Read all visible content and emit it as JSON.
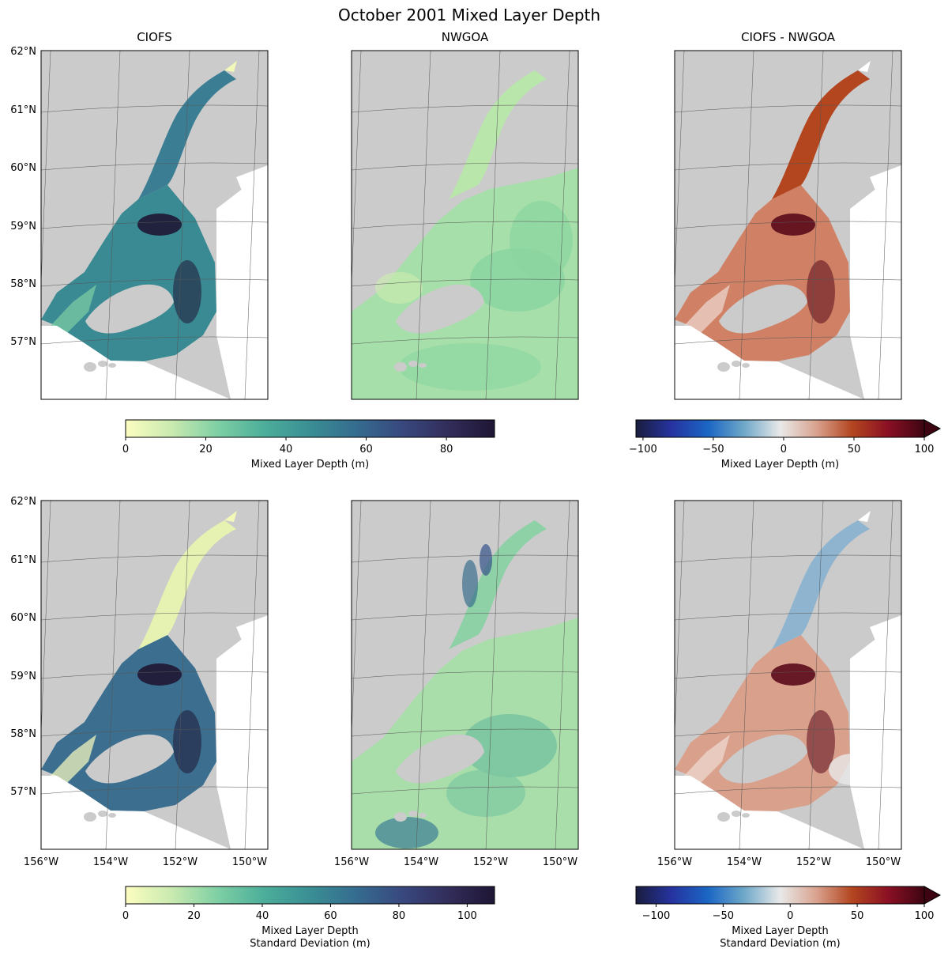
{
  "chart_data": {
    "type": "heatmap",
    "title": "October 2001 Mixed Layer Depth",
    "lat_ticks": [
      "62°N",
      "61°N",
      "60°N",
      "59°N",
      "58°N",
      "57°N"
    ],
    "lon_ticks": [
      "156°W",
      "154°W",
      "152°W",
      "150°W"
    ],
    "colors": {
      "land": "#cbcbcb",
      "frame": "#000000",
      "grid": "#555555",
      "deep_cmap": [
        "#fcfdbf",
        "#c9eab0",
        "#7ecfa4",
        "#4cae9a",
        "#3a8e94",
        "#356c8f",
        "#38487f",
        "#322d5a",
        "#1f1634"
      ],
      "diff_cmap": [
        "#1a1d3e",
        "#2633a0",
        "#1b66c4",
        "#6ea8c9",
        "#e9e9e9",
        "#d9a38f",
        "#b3451f",
        "#8a1024",
        "#3d0512"
      ]
    },
    "panels": [
      {
        "row": 0,
        "col": 0,
        "title": "CIOFS",
        "kind": "ciofs",
        "metric": "mean"
      },
      {
        "row": 0,
        "col": 1,
        "title": "NWGOA",
        "kind": "nwgoa",
        "metric": "mean"
      },
      {
        "row": 0,
        "col": 2,
        "title": "CIOFS - NWGOA",
        "kind": "diff",
        "metric": "mean"
      },
      {
        "row": 1,
        "col": 0,
        "title": "",
        "kind": "ciofs",
        "metric": "std"
      },
      {
        "row": 1,
        "col": 1,
        "title": "",
        "kind": "nwgoa",
        "metric": "std"
      },
      {
        "row": 1,
        "col": 2,
        "title": "",
        "kind": "diff",
        "metric": "std"
      }
    ],
    "colorbars": [
      {
        "row": 0,
        "kind": "deep",
        "range": [
          0,
          92
        ],
        "ticks": [
          0,
          20,
          40,
          60,
          80
        ],
        "label_lines": [
          "Mixed Layer Depth (m)"
        ]
      },
      {
        "row": 0,
        "kind": "diff",
        "range": [
          -105,
          100
        ],
        "ticks": [
          -100,
          -50,
          0,
          50,
          100
        ],
        "label_lines": [
          "Mixed Layer Depth (m)"
        ],
        "extend": "max"
      },
      {
        "row": 1,
        "kind": "deep",
        "range": [
          0,
          108
        ],
        "ticks": [
          0,
          20,
          40,
          60,
          80,
          100
        ],
        "label_lines": [
          "Mixed Layer Depth",
          "Standard Deviation (m)"
        ]
      },
      {
        "row": 1,
        "kind": "diff",
        "range": [
          -115,
          100
        ],
        "ticks": [
          -100,
          -50,
          0,
          50,
          100
        ],
        "label_lines": [
          "Mixed Layer Depth",
          "Standard Deviation (m)"
        ],
        "extend": "max"
      }
    ]
  }
}
